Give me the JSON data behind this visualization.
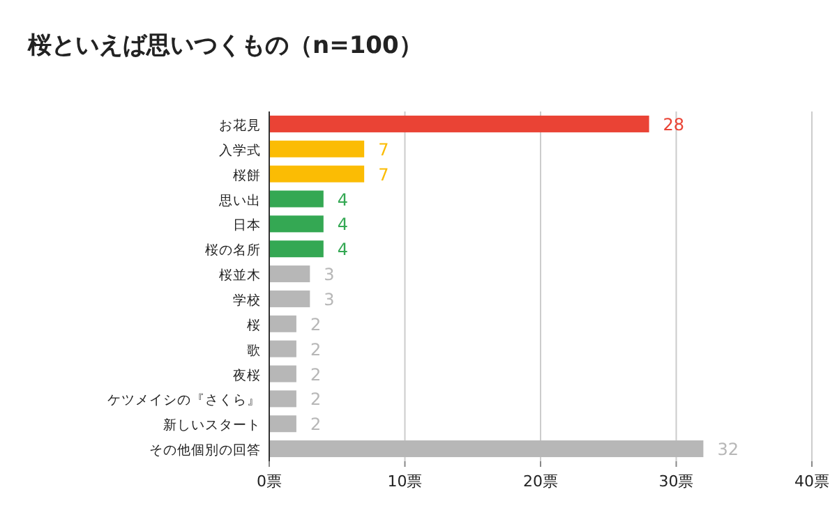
{
  "chart_data": {
    "type": "bar",
    "orientation": "horizontal",
    "title": "桜といえば思いつくもの（n=100）",
    "categories": [
      "お花見",
      "入学式",
      "桜餅",
      "思い出",
      "日本",
      "桜の名所",
      "桜並木",
      "学校",
      "桜",
      "歌",
      "夜桜",
      "ケツメイシの『さくら』",
      "新しいスタート",
      "その他個別の回答"
    ],
    "values": [
      28,
      7,
      7,
      4,
      4,
      4,
      3,
      3,
      2,
      2,
      2,
      2,
      2,
      32
    ],
    "colors": [
      "#ea4335",
      "#fbbc04",
      "#fbbc04",
      "#34a853",
      "#34a853",
      "#34a853",
      "#b7b7b7",
      "#b7b7b7",
      "#b7b7b7",
      "#b7b7b7",
      "#b7b7b7",
      "#b7b7b7",
      "#b7b7b7",
      "#b7b7b7"
    ],
    "xlim": [
      0,
      40
    ],
    "xticks": [
      {
        "value": 0,
        "label": "0票"
      },
      {
        "value": 10,
        "label": "10票"
      },
      {
        "value": 20,
        "label": "20票"
      },
      {
        "value": 30,
        "label": "30票"
      },
      {
        "value": 40,
        "label": "40票"
      }
    ],
    "grid": "x",
    "data_labels": true
  }
}
